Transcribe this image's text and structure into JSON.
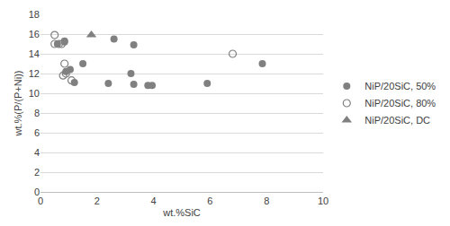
{
  "chart_data": {
    "type": "scatter",
    "x_label": "wt.%SiC",
    "y_label": "wt.%(P/(P+Ni))",
    "xlim": [
      0,
      10
    ],
    "xticks": [
      0,
      2,
      4,
      6,
      8,
      10
    ],
    "ylim": [
      0,
      18
    ],
    "yticks": [
      0,
      2,
      4,
      6,
      8,
      10,
      12,
      14,
      16,
      18
    ],
    "grid": "y",
    "legend": "right",
    "series": [
      {
        "name": "NiP/20SiC, 50%",
        "color": "#808080",
        "marker": "circle",
        "x": [
          0.6,
          0.85,
          0.85,
          0.9,
          1.05,
          1.2,
          1.5,
          2.4,
          2.6,
          3.2,
          3.3,
          3.3,
          3.8,
          3.95,
          5.9,
          7.85
        ],
        "values": [
          15.0,
          15.2,
          15.3,
          12.2,
          12.4,
          11.1,
          13.0,
          11.0,
          15.5,
          12.0,
          14.9,
          10.9,
          10.8,
          10.8,
          11.0,
          13.0
        ]
      },
      {
        "name": "NiP/20SiC, 80%",
        "color": "#808080",
        "marker": "circle-open",
        "x": [
          0.5,
          0.5,
          0.65,
          0.75,
          0.8,
          0.85,
          0.9,
          1.1,
          6.8
        ],
        "values": [
          15.9,
          15.0,
          15.0,
          15.0,
          11.8,
          13.0,
          12.0,
          11.3,
          14.0
        ]
      },
      {
        "name": "NiP/20SiC, DC",
        "color": "#808080",
        "marker": "triangle-up",
        "x": [
          1.8
        ],
        "values": [
          15.9
        ]
      }
    ]
  }
}
